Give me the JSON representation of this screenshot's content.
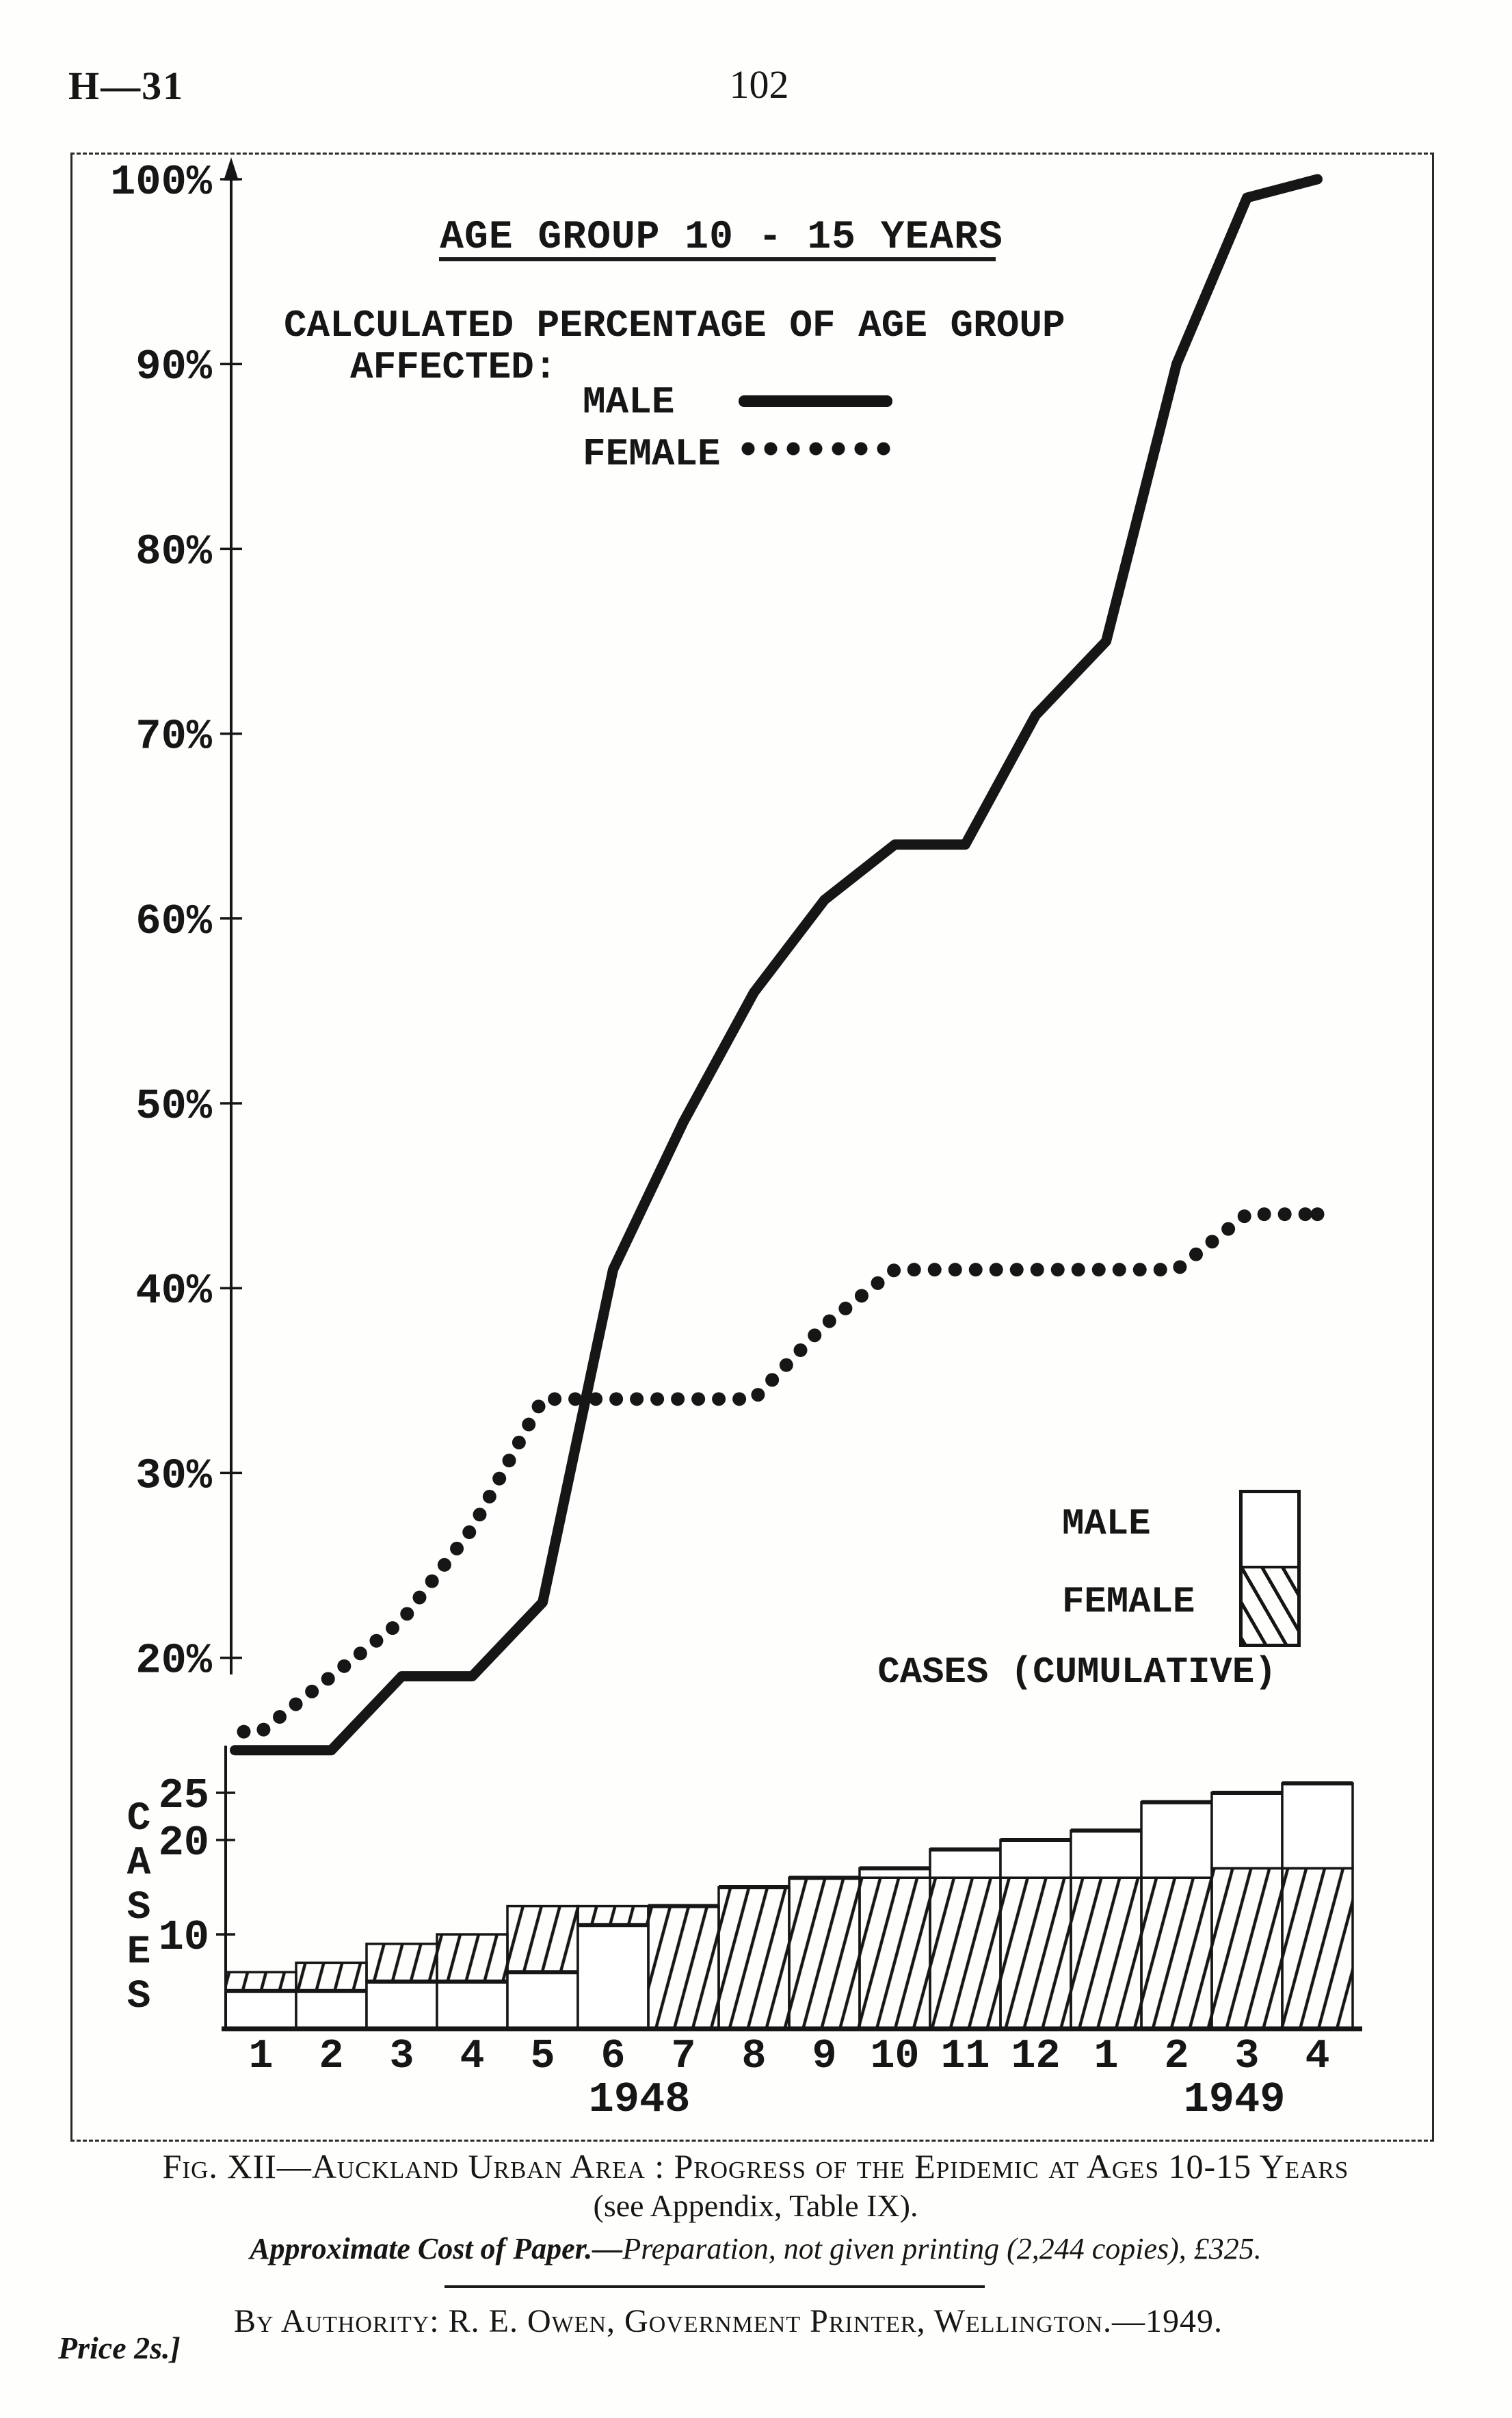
{
  "colors": {
    "ink": "#161616",
    "paper": "#fefefc"
  },
  "page": {
    "header_left": "H—31",
    "page_number": "102"
  },
  "figure": {
    "title": "AGE GROUP 10 - 15 YEARS",
    "subtitle_line1": "CALCULATED PERCENTAGE OF AGE GROUP",
    "subtitle_line2": "AFFECTED:",
    "line_legend": {
      "male_label": "MALE",
      "female_label": "FEMALE"
    },
    "bar_legend": {
      "male_label": "MALE",
      "female_label": "FEMALE",
      "caption": "CASES (CUMULATIVE)"
    },
    "year_left": "1948",
    "year_right": "1949"
  },
  "chart_data": {
    "type": "line+bar",
    "title": "AGE GROUP 10 - 15 YEARS",
    "x_months": [
      "1",
      "2",
      "3",
      "4",
      "5",
      "6",
      "7",
      "8",
      "9",
      "10",
      "11",
      "12",
      "1",
      "2",
      "3",
      "4"
    ],
    "x_years": {
      "1948": "months 1-12",
      "1949": "months 13-16"
    },
    "pct_axis": {
      "ticks": [
        {
          "label": "100%",
          "value": 100
        },
        {
          "label": "90%",
          "value": 90
        },
        {
          "label": "80%",
          "value": 80
        },
        {
          "label": "70%",
          "value": 70
        },
        {
          "label": "60%",
          "value": 60
        },
        {
          "label": "50%",
          "value": 50
        },
        {
          "label": "40%",
          "value": 40
        },
        {
          "label": "30%",
          "value": 30
        },
        {
          "label": "20%",
          "value": 20
        }
      ],
      "range": [
        15,
        100
      ],
      "grid": false
    },
    "cases_axis": {
      "label": "CASES",
      "ticks": [
        {
          "label": "25",
          "value": 25
        },
        {
          "label": "20",
          "value": 20
        },
        {
          "label": "10",
          "value": 10
        }
      ],
      "range": [
        0,
        27
      ]
    },
    "series": [
      {
        "name": "MALE % of age group affected",
        "style": "solid-line",
        "values": [
          15,
          15,
          19,
          19,
          23,
          41,
          49,
          56,
          61,
          64,
          64,
          71,
          75,
          90,
          99,
          100
        ]
      },
      {
        "name": "FEMALE % of age group affected",
        "style": "dotted-line",
        "values": [
          16,
          19,
          22,
          27,
          34,
          34,
          34,
          34,
          38,
          41,
          41,
          41,
          41,
          41,
          44,
          44
        ]
      },
      {
        "name": "MALE cases (cumulative)",
        "style": "bar-white",
        "values": [
          4,
          4,
          5,
          5,
          6,
          11,
          13,
          15,
          16,
          17,
          19,
          20,
          21,
          24,
          25,
          26
        ]
      },
      {
        "name": "FEMALE cases (cumulative)",
        "style": "bar-hatched",
        "values": [
          6,
          7,
          9,
          10,
          13,
          13,
          13,
          15,
          16,
          16,
          16,
          16,
          16,
          16,
          17,
          17
        ]
      }
    ],
    "legend_position": "upper-left (lines), middle-right (bars)"
  },
  "footer": {
    "fig_caption_line1": "Fig. XII—Auckland Urban Area : Progress of the Epidemic at Ages 10-15 Years",
    "fig_caption_line2": "(see Appendix, Table IX).",
    "cost_lead": "Approximate Cost of Paper.—",
    "cost_rest": "Preparation, not given    printing (2,244 copies), £325.",
    "authority_line": "By Authority:  R. E. Owen, Government Printer, Wellington.—1949.",
    "price_note": "Price 2s.]"
  }
}
